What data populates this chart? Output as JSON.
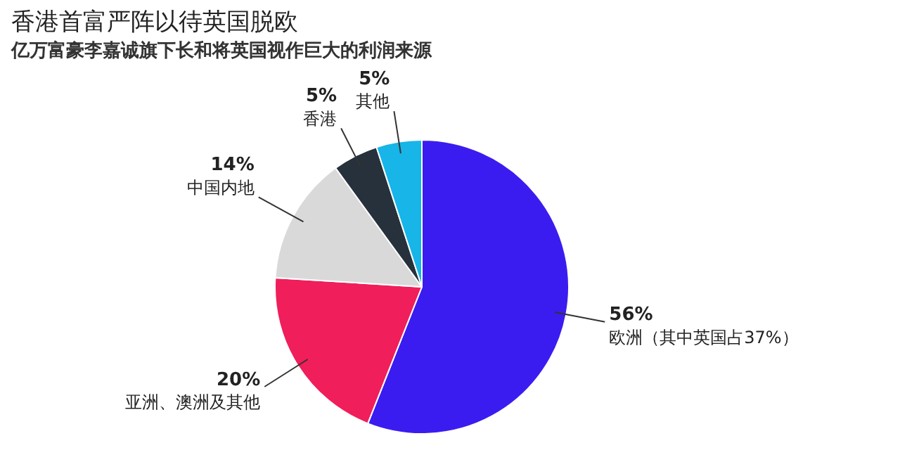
{
  "chart_data": {
    "type": "pie",
    "title": "香港首富严阵以待英国脱欧",
    "subtitle": "亿万富豪李嘉诚旗下长和将英国视作巨大的利润来源",
    "categories": [
      "欧洲（其中英国占37%）",
      "亚洲、澳洲及其他",
      "中国内地",
      "香港",
      "其他"
    ],
    "values": [
      56,
      20,
      14,
      5,
      5
    ],
    "colors": [
      "#3b1cf0",
      "#f01e5a",
      "#d9d9d9",
      "#27313c",
      "#17b5e8"
    ],
    "value_labels": [
      "56%",
      "20%",
      "14%",
      "5%",
      "5%"
    ],
    "legend": false
  }
}
